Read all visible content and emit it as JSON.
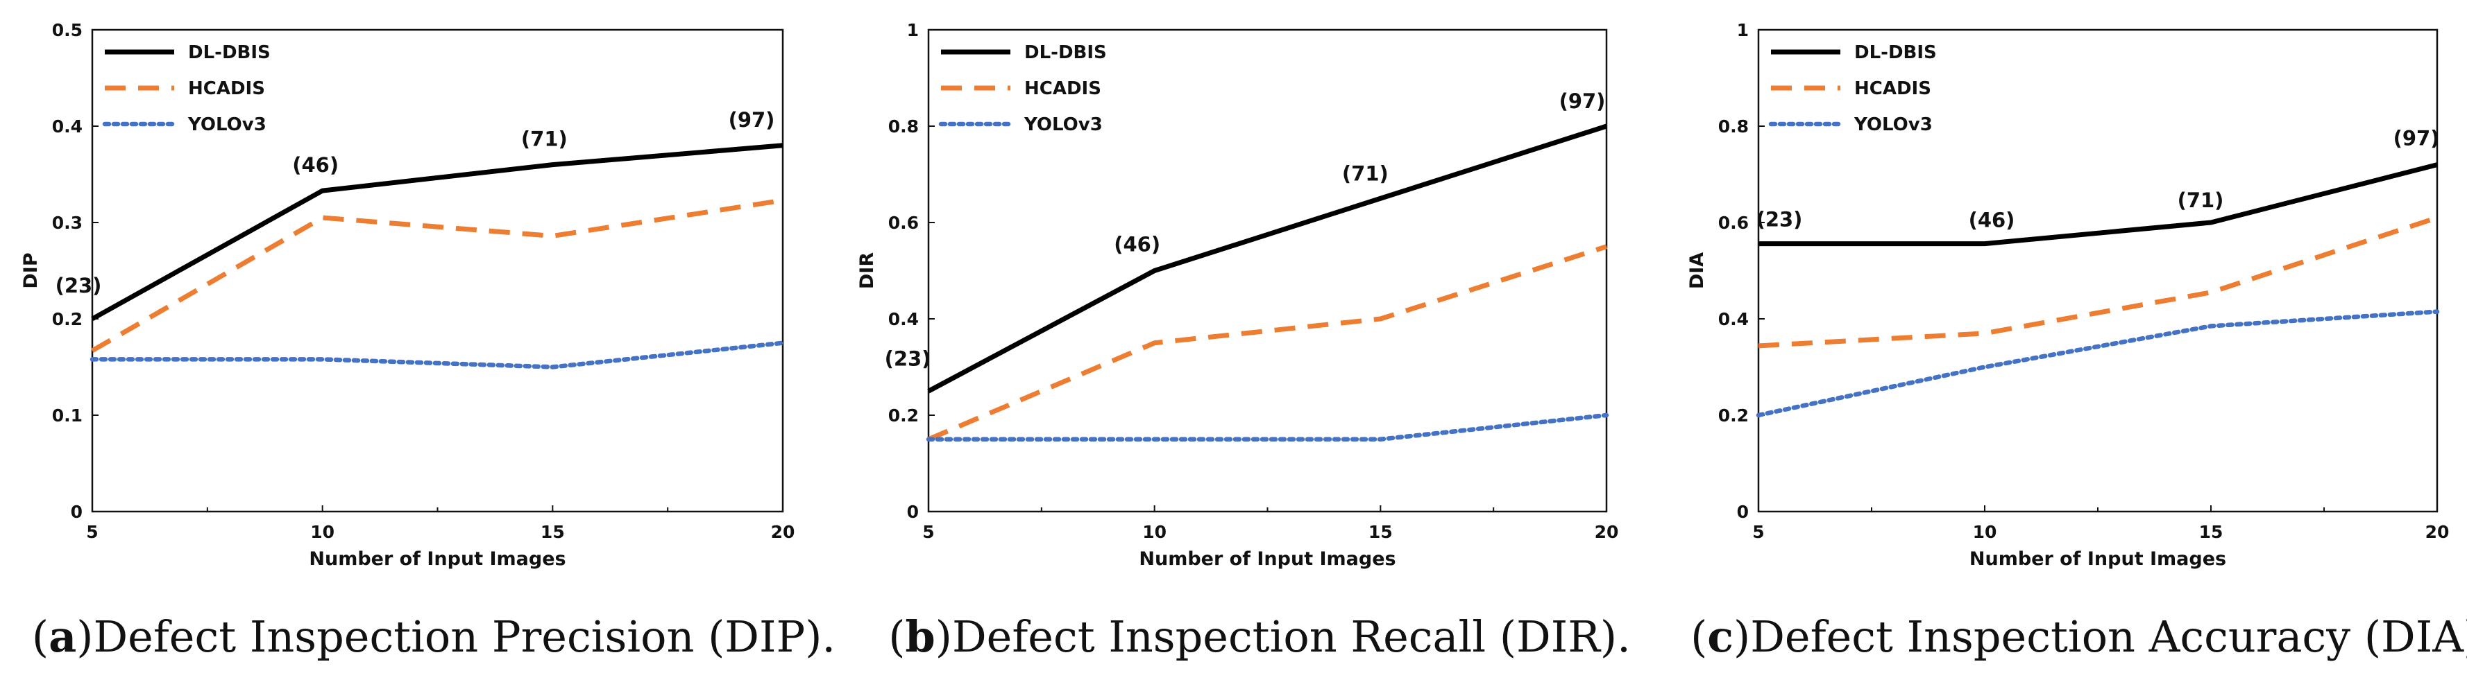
{
  "chart_data": [
    {
      "type": "line",
      "panel_letter": "a",
      "caption": "Defect Inspection Precision (DIP).",
      "xlabel": "Number of Input Images",
      "ylabel": "DIP",
      "x": [
        5,
        10,
        15,
        20
      ],
      "xticks": [
        "5",
        "10",
        "15",
        "20"
      ],
      "ylim": [
        0,
        0.5
      ],
      "yticks": [
        "0",
        "0.1",
        "0.2",
        "0.3",
        "0.4",
        "0.5"
      ],
      "grid": false,
      "legend": "top-left",
      "series": [
        {
          "name": "DL-DBIS",
          "values": [
            0.2,
            0.333,
            0.36,
            0.38
          ],
          "color": "#000000",
          "style": "solid"
        },
        {
          "name": "HCADIS",
          "values": [
            0.167,
            0.305,
            0.286,
            0.323
          ],
          "color": "#ED7D31",
          "style": "dashed"
        },
        {
          "name": "YOLOv3",
          "values": [
            0.158,
            0.158,
            0.15,
            0.175
          ],
          "color": "#4472C4",
          "style": "dotted"
        }
      ],
      "annotations": [
        "(23)",
        "(46)",
        "(71)",
        "(97)"
      ]
    },
    {
      "type": "line",
      "panel_letter": "b",
      "caption": "Defect Inspection Recall (DIR).",
      "xlabel": "Number of Input Images",
      "ylabel": "DIR",
      "x": [
        5,
        10,
        15,
        20
      ],
      "xticks": [
        "5",
        "10",
        "15",
        "20"
      ],
      "ylim": [
        0,
        1
      ],
      "yticks": [
        "0",
        "0.2",
        "0.4",
        "0.6",
        "0.8",
        "1"
      ],
      "grid": false,
      "legend": "top-left",
      "series": [
        {
          "name": "DL-DBIS",
          "values": [
            0.25,
            0.5,
            0.65,
            0.8
          ],
          "color": "#000000",
          "style": "solid"
        },
        {
          "name": "HCADIS",
          "values": [
            0.15,
            0.35,
            0.4,
            0.55
          ],
          "color": "#ED7D31",
          "style": "dashed"
        },
        {
          "name": "YOLOv3",
          "values": [
            0.15,
            0.15,
            0.15,
            0.2
          ],
          "color": "#4472C4",
          "style": "dotted"
        }
      ],
      "annotations": [
        "(23)",
        "(46)",
        "(71)",
        "(97)"
      ]
    },
    {
      "type": "line",
      "panel_letter": "c",
      "caption": "Defect Inspection Accuracy (DIA).",
      "xlabel": "Number of Input Images",
      "ylabel": "DIA",
      "x": [
        5,
        10,
        15,
        20
      ],
      "xticks": [
        "5",
        "10",
        "15",
        "20"
      ],
      "ylim": [
        0,
        1
      ],
      "yticks": [
        "0",
        "0.2",
        "0.4",
        "0.6",
        "0.8",
        "1"
      ],
      "grid": false,
      "legend": "top-left",
      "series": [
        {
          "name": "DL-DBIS",
          "values": [
            0.556,
            0.556,
            0.6,
            0.72
          ],
          "color": "#000000",
          "style": "solid"
        },
        {
          "name": "HCADIS",
          "values": [
            0.344,
            0.37,
            0.455,
            0.61
          ],
          "color": "#ED7D31",
          "style": "dashed"
        },
        {
          "name": "YOLOv3",
          "values": [
            0.2,
            0.3,
            0.385,
            0.415
          ],
          "color": "#4472C4",
          "style": "dotted"
        }
      ],
      "annotations": [
        "(23)",
        "(46)",
        "(71)",
        "(97)"
      ]
    }
  ]
}
